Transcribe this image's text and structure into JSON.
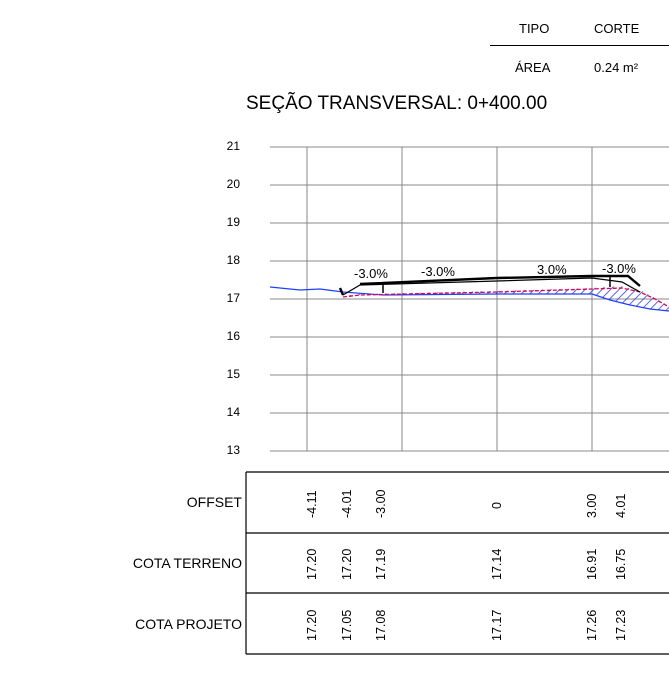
{
  "info": {
    "tipo_label": "TIPO",
    "tipo_value": "CORTE",
    "area_label": "ÁREA",
    "area_value": "0.24 m²"
  },
  "title": "SEÇÃO TRANSVERSAL: 0+400.00",
  "y_ticks": [
    "21",
    "20",
    "19",
    "18",
    "17",
    "16",
    "15",
    "14",
    "13"
  ],
  "slope_labels": [
    "-3.0%",
    "-3.0%",
    "3.0%",
    "-3.0%"
  ],
  "table": {
    "row_labels": [
      "OFFSET",
      "COTA TERRENO",
      "COTA PROJETO"
    ],
    "columns": [
      {
        "offset": "-4.11",
        "terreno": "17.20",
        "projeto": "17.20"
      },
      {
        "offset": "-4.01",
        "terreno": "17.20",
        "projeto": "17.05"
      },
      {
        "offset": "-3.00",
        "terreno": "17.19",
        "projeto": "17.08"
      },
      {
        "offset": "0",
        "terreno": "17.14",
        "projeto": "17.17"
      },
      {
        "offset": "3.00",
        "terreno": "16.91",
        "projeto": "17.26"
      },
      {
        "offset": "4.01",
        "terreno": "16.75",
        "projeto": "17.23"
      }
    ]
  },
  "colors": {
    "terrain": "#1f3fff",
    "project": "#000000",
    "hatch": "#2a3fe0",
    "accent_red": "#e0004a"
  }
}
